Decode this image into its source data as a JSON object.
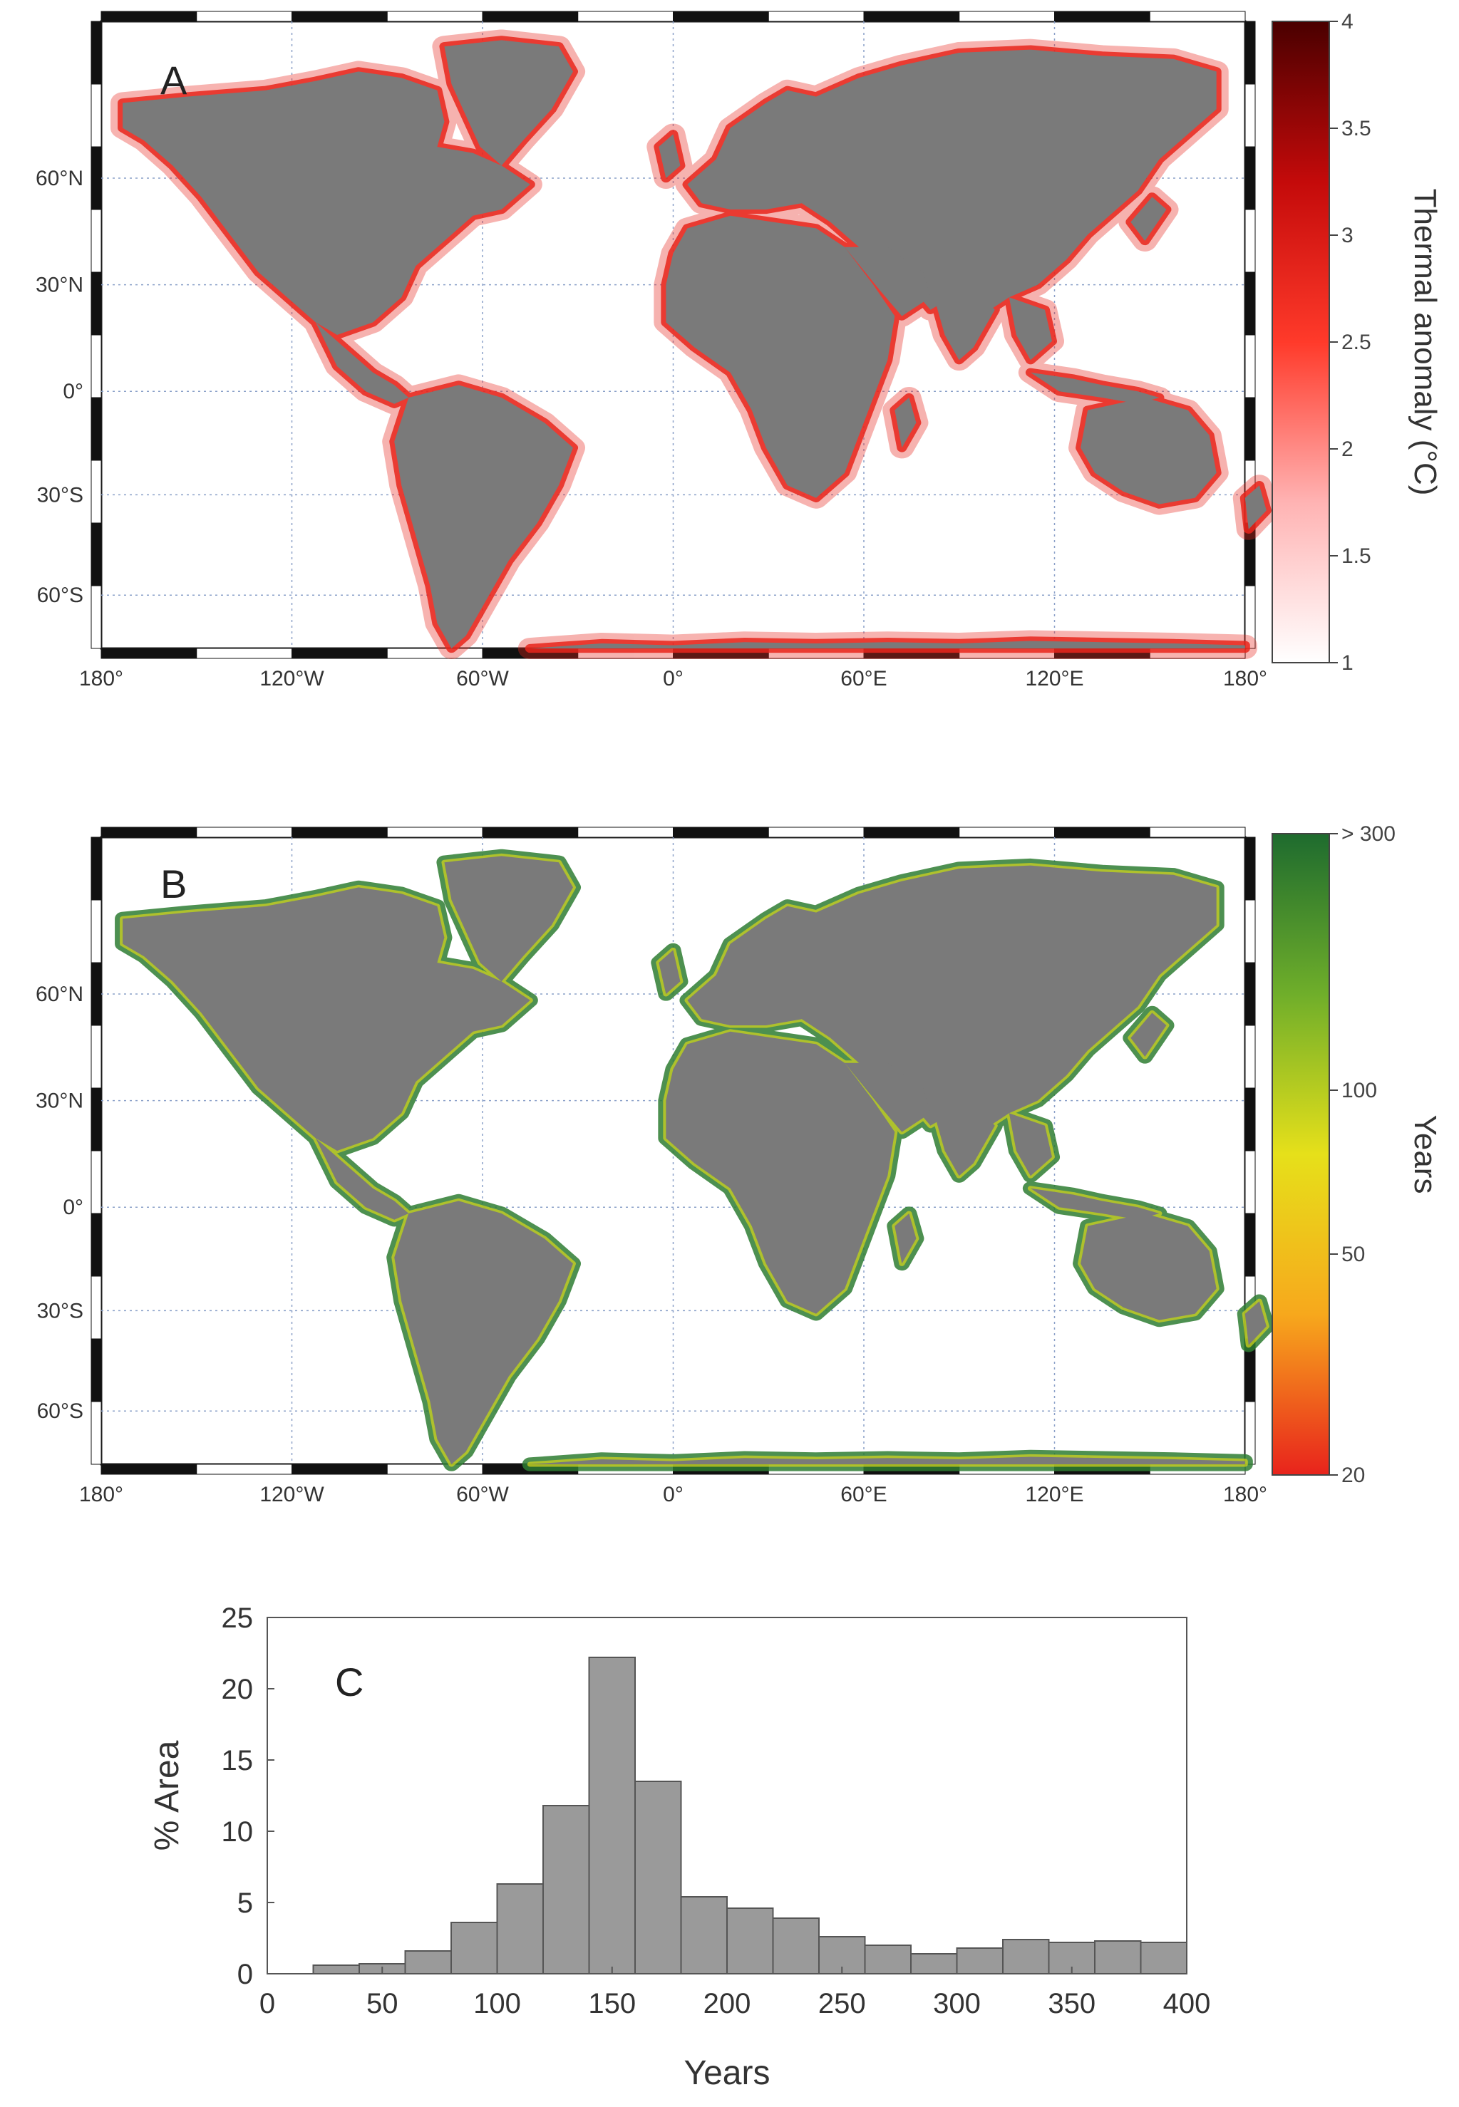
{
  "panel_a": {
    "letter": "A",
    "lon_labels": [
      "180°",
      "120°W",
      "60°W",
      "0°",
      "60°E",
      "120°E",
      "180°"
    ],
    "lat_labels": [
      "60°N",
      "30°N",
      "0°",
      "30°S",
      "60°S"
    ],
    "colorbar": {
      "label": "Thermal anomaly (°C)",
      "ticks": [
        "4",
        "3.5",
        "3",
        "2.5",
        "2",
        "1.5",
        "1"
      ],
      "colors": [
        "#ffffff",
        "#ffb3b3",
        "#ff3a2a",
        "#c40a0a",
        "#4a0000"
      ]
    },
    "coastal_color": "#e8261c"
  },
  "panel_b": {
    "letter": "B",
    "lon_labels": [
      "180°",
      "120°W",
      "60°W",
      "0°",
      "60°E",
      "120°E",
      "180°"
    ],
    "lat_labels": [
      "60°N",
      "30°N",
      "0°",
      "30°S",
      "60°S"
    ],
    "colorbar": {
      "label": "Years",
      "ticks": [
        "> 300",
        "100",
        "50",
        "20"
      ],
      "colors": [
        "#1e6b2e",
        "#6fae2a",
        "#e6e01a",
        "#f7a81c",
        "#e8231c"
      ]
    },
    "coastal_color": "#2e7d32"
  },
  "land_color": "#7a7a7a",
  "chart_data": {
    "type": "bar",
    "letter": "C",
    "xlabel": "Years",
    "ylabel": "% Area",
    "xlim": [
      0,
      400
    ],
    "ylim": [
      0,
      25
    ],
    "xticks": [
      0,
      50,
      100,
      150,
      200,
      250,
      300,
      350,
      400
    ],
    "yticks": [
      0,
      5,
      10,
      15,
      20,
      25
    ],
    "bin_width": 20,
    "bins_start": [
      20,
      40,
      60,
      80,
      100,
      120,
      140,
      160,
      180,
      200,
      220,
      240,
      260,
      280,
      300,
      320,
      340,
      360,
      380
    ],
    "values": [
      0.6,
      0.7,
      1.6,
      3.6,
      6.3,
      11.8,
      22.2,
      13.5,
      5.4,
      4.6,
      3.9,
      2.6,
      2.0,
      1.4,
      1.8,
      2.4,
      2.2,
      2.3,
      2.2
    ],
    "bar_color": "#9a9a9a"
  }
}
